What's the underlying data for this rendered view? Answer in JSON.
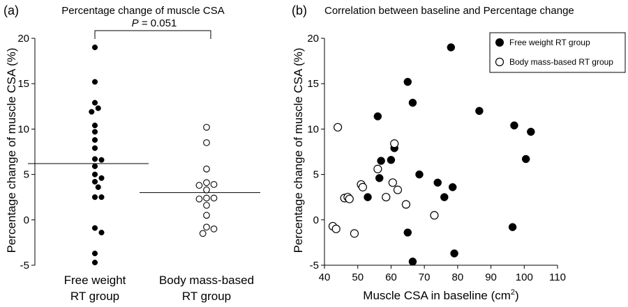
{
  "chart_data": [
    {
      "panel_label": "(a)",
      "type": "scatter",
      "title": "Percentage change of muscle CSA",
      "ylabel": "Percentage change of muscle CSA (%)",
      "ylim": [
        -5,
        20
      ],
      "yticks": [
        -5,
        0,
        5,
        10,
        15,
        20
      ],
      "categories": [
        {
          "line1": "Free weight",
          "line2": "RT group"
        },
        {
          "line1": "Body mass-based",
          "line2": "RT group"
        }
      ],
      "annotation": {
        "italic": "P",
        "text": " = 0.051"
      },
      "series": [
        {
          "name": "Free weight RT group",
          "marker": "filled",
          "mean": 6.2,
          "values": [
            19.0,
            15.2,
            12.9,
            12.3,
            11.9,
            10.4,
            9.7,
            8.8,
            7.9,
            6.7,
            6.6,
            5.9,
            5.0,
            4.6,
            4.2,
            3.6,
            2.5,
            2.5,
            -0.9,
            -1.4,
            -3.7,
            -4.7
          ]
        },
        {
          "name": "Body mass-based RT group",
          "marker": "open",
          "mean": 3.0,
          "values": [
            10.2,
            8.5,
            5.6,
            4.1,
            3.9,
            3.8,
            3.3,
            2.4,
            2.4,
            2.3,
            1.6,
            0.5,
            -0.8,
            -1.0,
            -1.5
          ]
        }
      ]
    },
    {
      "panel_label": "(b)",
      "type": "scatter",
      "title": "Correlation between baseline and Percentage change",
      "ylabel": "Percentage change of muscle CSA (%)",
      "xlabel_text": "Muscle CSA in baseline (cm",
      "xlabel_sup": "2",
      "xlabel_end": ")",
      "xlim": [
        40,
        110
      ],
      "ylim": [
        -5,
        20
      ],
      "xticks": [
        40,
        50,
        60,
        70,
        80,
        90,
        100,
        110
      ],
      "yticks": [
        -5,
        0,
        5,
        10,
        15,
        20
      ],
      "legend_position": "top-right",
      "series": [
        {
          "name": "Free weight RT group",
          "marker": "filled",
          "points": [
            [
              78,
              19.0
            ],
            [
              65,
              15.2
            ],
            [
              66.5,
              12.9
            ],
            [
              56,
              11.4
            ],
            [
              86.5,
              12.0
            ],
            [
              97,
              10.4
            ],
            [
              102,
              9.7
            ],
            [
              100.5,
              6.7
            ],
            [
              61,
              7.9
            ],
            [
              57,
              6.5
            ],
            [
              60,
              6.6
            ],
            [
              68.5,
              5.0
            ],
            [
              56.5,
              4.6
            ],
            [
              74,
              4.1
            ],
            [
              78.5,
              3.6
            ],
            [
              76,
              2.5
            ],
            [
              53,
              2.5
            ],
            [
              96.5,
              -0.8
            ],
            [
              65,
              -1.4
            ],
            [
              79,
              -3.7
            ],
            [
              66.5,
              -4.6
            ]
          ]
        },
        {
          "name": "Body mass-based RT group",
          "marker": "open",
          "points": [
            [
              44,
              10.2
            ],
            [
              61,
              8.4
            ],
            [
              56,
              5.6
            ],
            [
              60.5,
              4.1
            ],
            [
              51,
              3.9
            ],
            [
              51.5,
              3.6
            ],
            [
              62,
              3.3
            ],
            [
              46,
              2.4
            ],
            [
              47,
              2.5
            ],
            [
              47.5,
              2.3
            ],
            [
              58.5,
              2.5
            ],
            [
              64.5,
              1.7
            ],
            [
              73,
              0.5
            ],
            [
              42.5,
              -0.7
            ],
            [
              43.5,
              -1.0
            ],
            [
              49,
              -1.5
            ]
          ]
        }
      ]
    }
  ]
}
